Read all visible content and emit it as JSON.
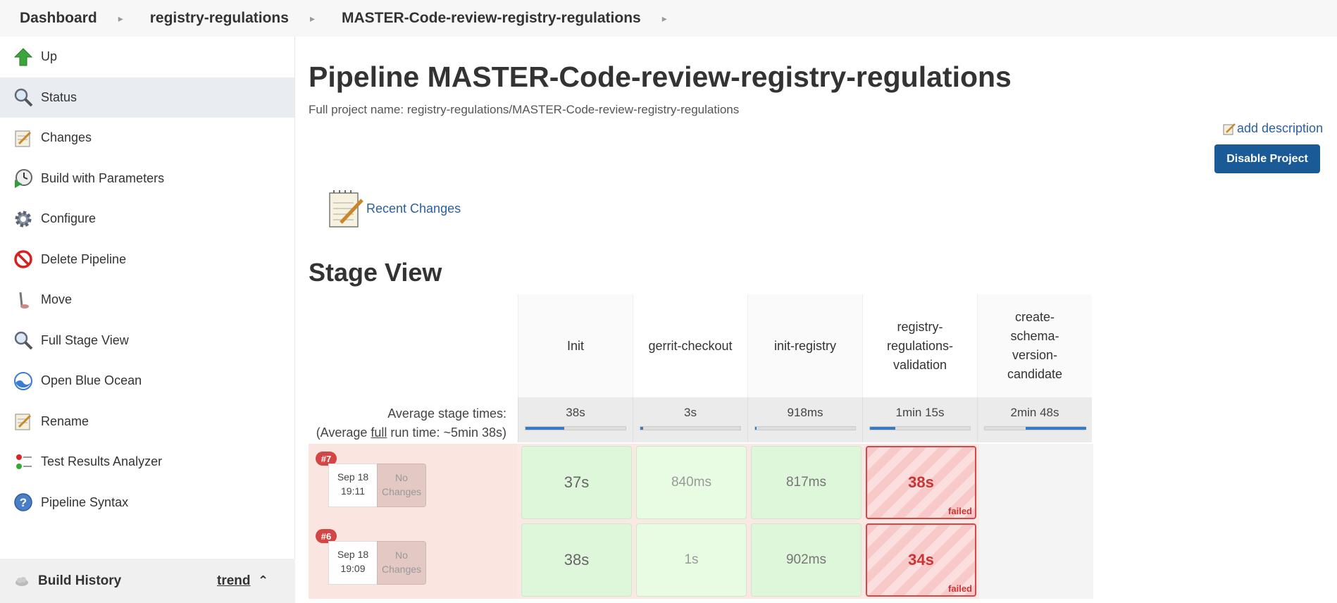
{
  "breadcrumb": [
    "Dashboard",
    "registry-regulations",
    "MASTER-Code-review-registry-regulations"
  ],
  "sidebar": {
    "items": [
      {
        "label": "Up",
        "icon": "up-arrow-icon"
      },
      {
        "label": "Status",
        "icon": "magnifier-icon"
      },
      {
        "label": "Changes",
        "icon": "notepad-icon"
      },
      {
        "label": "Build with Parameters",
        "icon": "clock-play-icon"
      },
      {
        "label": "Configure",
        "icon": "gear-icon"
      },
      {
        "label": "Delete Pipeline",
        "icon": "no-entry-icon"
      },
      {
        "label": "Move",
        "icon": "move-icon"
      },
      {
        "label": "Full Stage View",
        "icon": "magnifier-icon"
      },
      {
        "label": "Open Blue Ocean",
        "icon": "blue-ocean-icon"
      },
      {
        "label": "Rename",
        "icon": "notepad-icon"
      },
      {
        "label": "Test Results Analyzer",
        "icon": "test-results-icon"
      },
      {
        "label": "Pipeline Syntax",
        "icon": "help-icon"
      }
    ],
    "build_history": {
      "label": "Build History",
      "trend": "trend"
    }
  },
  "main": {
    "title": "Pipeline MASTER-Code-review-registry-regulations",
    "full_name": "Full project name: registry-regulations/MASTER-Code-review-registry-regulations",
    "add_description": "add description",
    "disable_button": "Disable Project",
    "recent_changes": "Recent Changes",
    "stage_view_title": "Stage View"
  },
  "stage_view": {
    "stages": [
      "Init",
      "gerrit-checkout",
      "init-registry",
      "registry-regulations-validation",
      "create-schema-version-candidate"
    ],
    "avg_label": "Average stage times:",
    "avg_full_prefix": "(Average ",
    "avg_full_word": "full",
    "avg_full_suffix": " run time: ~5min 38s)",
    "avg_times": [
      "38s",
      "3s",
      "918ms",
      "1min 15s",
      "2min 48s"
    ],
    "avg_bar_fraction": [
      0.38,
      0.03,
      0.01,
      0.25,
      0.6
    ],
    "builds": [
      {
        "number": "#7",
        "date": "Sep 18",
        "time": "19:11",
        "no_changes": "No Changes",
        "cells": [
          "37s",
          "840ms",
          "817ms",
          "38s"
        ],
        "status": [
          "ok",
          "ok",
          "ok",
          "failed"
        ],
        "failed_label": "failed"
      },
      {
        "number": "#6",
        "date": "Sep 18",
        "time": "19:09",
        "no_changes": "No Changes",
        "cells": [
          "38s",
          "1s",
          "902ms",
          "34s"
        ],
        "status": [
          "ok",
          "ok",
          "ok",
          "failed"
        ],
        "failed_label": "failed"
      }
    ]
  }
}
